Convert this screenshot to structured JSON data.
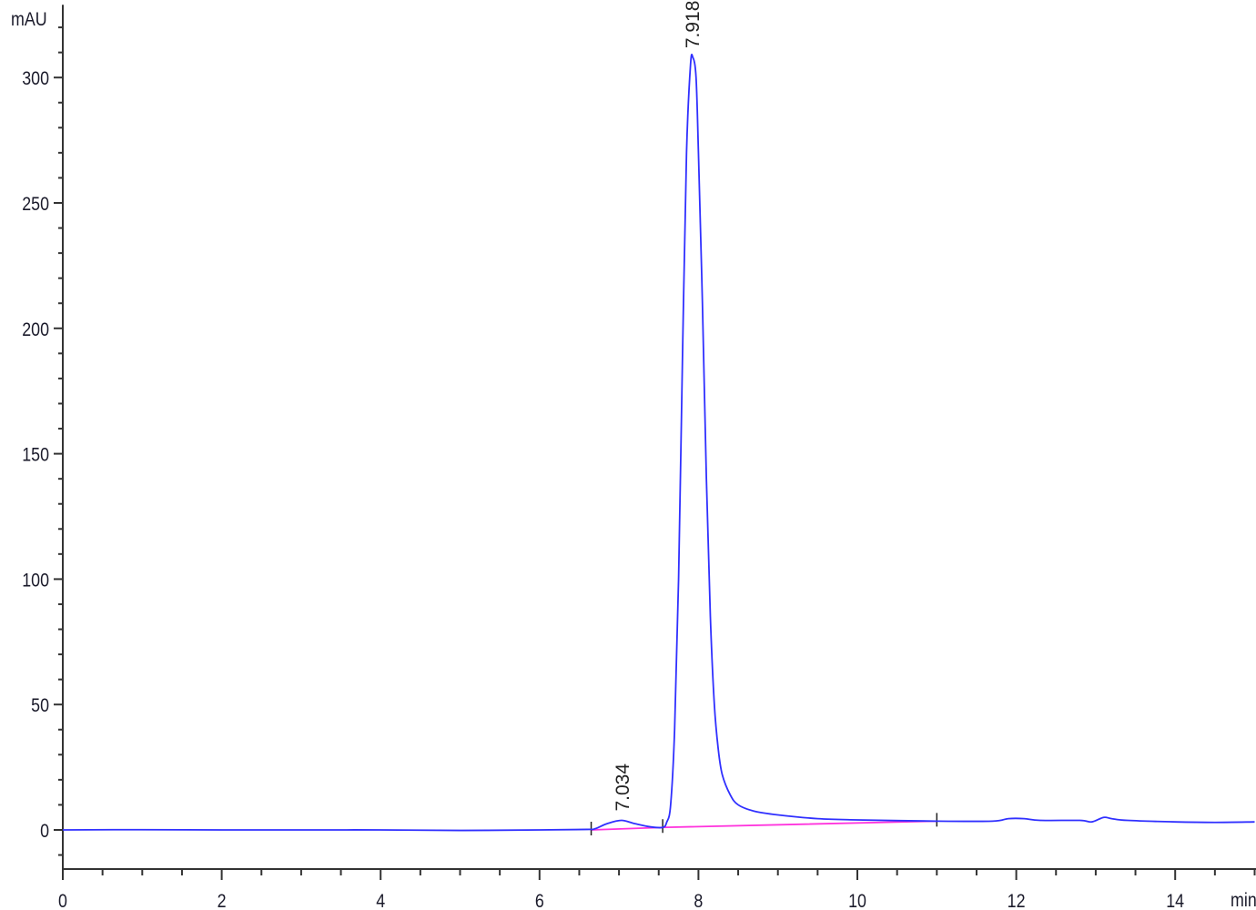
{
  "chart_data": {
    "type": "line",
    "title": "",
    "xlabel": "min",
    "ylabel": "mAU",
    "xlim": [
      0,
      15
    ],
    "ylim": [
      -15.6,
      329
    ],
    "x_ticks": [
      0,
      2,
      4,
      6,
      8,
      10,
      12,
      14
    ],
    "y_ticks": [
      0,
      50,
      100,
      150,
      200,
      250,
      300
    ],
    "grid": false,
    "colors": {
      "trace": "#3030ff",
      "baseline": "#ff33dd",
      "axis": "#333333",
      "text": "#1a1a2a"
    },
    "peak_labels": [
      {
        "rt": 7.034,
        "label": "7.034",
        "height": 3.8
      },
      {
        "rt": 7.918,
        "label": "7.918",
        "height": 308
      }
    ],
    "integration_baseline": [
      [
        6.65,
        0
      ],
      [
        7.55,
        1.0
      ],
      [
        11.0,
        3.5
      ]
    ],
    "trace": [
      [
        0,
        0
      ],
      [
        1,
        0.1
      ],
      [
        2,
        0
      ],
      [
        3,
        0
      ],
      [
        4,
        0
      ],
      [
        5,
        -0.2
      ],
      [
        6,
        0
      ],
      [
        6.6,
        0.2
      ],
      [
        6.7,
        0.5
      ],
      [
        6.85,
        2.5
      ],
      [
        7.03,
        3.8
      ],
      [
        7.2,
        2.5
      ],
      [
        7.4,
        1.2
      ],
      [
        7.55,
        1.0
      ],
      [
        7.6,
        3
      ],
      [
        7.65,
        10
      ],
      [
        7.7,
        40
      ],
      [
        7.75,
        100
      ],
      [
        7.8,
        190
      ],
      [
        7.85,
        270
      ],
      [
        7.9,
        305
      ],
      [
        7.93,
        308
      ],
      [
        7.97,
        300
      ],
      [
        8.0,
        270
      ],
      [
        8.05,
        210
      ],
      [
        8.1,
        140
      ],
      [
        8.15,
        85
      ],
      [
        8.2,
        50
      ],
      [
        8.25,
        32
      ],
      [
        8.3,
        22
      ],
      [
        8.4,
        14
      ],
      [
        8.5,
        10
      ],
      [
        8.7,
        7.5
      ],
      [
        9.0,
        6
      ],
      [
        9.5,
        4.5
      ],
      [
        10,
        4
      ],
      [
        11,
        3.5
      ],
      [
        11.7,
        3.5
      ],
      [
        11.9,
        4.5
      ],
      [
        12.1,
        4.5
      ],
      [
        12.3,
        3.8
      ],
      [
        12.8,
        3.8
      ],
      [
        12.95,
        3.2
      ],
      [
        13.1,
        5
      ],
      [
        13.2,
        4.5
      ],
      [
        13.4,
        3.8
      ],
      [
        14,
        3.2
      ],
      [
        14.5,
        3
      ],
      [
        15,
        3.2
      ]
    ]
  }
}
